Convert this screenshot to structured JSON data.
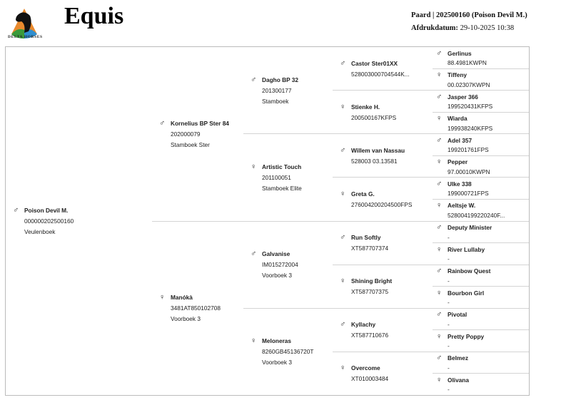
{
  "header": {
    "logo_text": "DELTA HORSES",
    "title": "Equis",
    "horse_line": "Paard | 202500160 (Poison Devil M.)",
    "print_label": "Afdrukdatum:",
    "print_date": "29-10-2025 10:38"
  },
  "icons": {
    "male": "male-symbol ♂",
    "female": "female-symbol ♀"
  },
  "pedigree": {
    "name": "Poison Devil M.",
    "sex": "male",
    "number": "000000202500160",
    "book": "Veulenboek",
    "parents": [
      {
        "name": "Kornelius BP Ster 84",
        "sex": "male",
        "number": "202000079",
        "book": "Stamboek Ster",
        "parents": [
          {
            "name": "Dagho BP 32",
            "sex": "male",
            "number": "201300177",
            "book": "Stamboek",
            "parents": [
              {
                "name": "Castor Ster01XX",
                "sex": "male",
                "number": "528003000704544K...",
                "parents": [
                  {
                    "name": "Gerlinus",
                    "sex": "male",
                    "number": "88.4981KWPN"
                  },
                  {
                    "name": "Tiffeny",
                    "sex": "female",
                    "number": "00.02307KWPN"
                  }
                ]
              },
              {
                "name": "Stienke H.",
                "sex": "female",
                "number": "200500167KFPS",
                "parents": [
                  {
                    "name": "Jasper 366",
                    "sex": "male",
                    "number": "199520431KFPS"
                  },
                  {
                    "name": "Wiarda",
                    "sex": "female",
                    "number": "199938240KFPS"
                  }
                ]
              }
            ]
          },
          {
            "name": "Artistic Touch",
            "sex": "female",
            "number": "201100051",
            "book": "Stamboek Elite",
            "parents": [
              {
                "name": "Willem van Nassau",
                "sex": "male",
                "number": "528003 03.13581",
                "parents": [
                  {
                    "name": "Adel 357",
                    "sex": "male",
                    "number": "199201761FPS"
                  },
                  {
                    "name": "Pepper",
                    "sex": "female",
                    "number": "97.00010KWPN"
                  }
                ]
              },
              {
                "name": "Greta G.",
                "sex": "female",
                "number": "276004200204500FPS",
                "parents": [
                  {
                    "name": "Ulke 338",
                    "sex": "male",
                    "number": "199000721FPS"
                  },
                  {
                    "name": "Aeltsje W.",
                    "sex": "female",
                    "number": "528004199220240F..."
                  }
                ]
              }
            ]
          }
        ]
      },
      {
        "name": "Manókà",
        "sex": "female",
        "number": "3481AT850102708",
        "book": "Voorboek 3",
        "parents": [
          {
            "name": "Galvanise",
            "sex": "male",
            "number": "IM015272004",
            "book": "Voorboek 3",
            "parents": [
              {
                "name": "Run Softly",
                "sex": "male",
                "number": "XT587707374",
                "parents": [
                  {
                    "name": "Deputy Minister",
                    "sex": "male",
                    "number": "-"
                  },
                  {
                    "name": "River Lullaby",
                    "sex": "female",
                    "number": "-"
                  }
                ]
              },
              {
                "name": "Shining Bright",
                "sex": "female",
                "number": "XT587707375",
                "parents": [
                  {
                    "name": "Rainbow Quest",
                    "sex": "male",
                    "number": "-"
                  },
                  {
                    "name": "Bourbon Girl",
                    "sex": "female",
                    "number": "-"
                  }
                ]
              }
            ]
          },
          {
            "name": "Meloneras",
            "sex": "female",
            "number": "8260GB45136720T",
            "book": "Voorboek 3",
            "parents": [
              {
                "name": "Kyllachy",
                "sex": "male",
                "number": "XT587710676",
                "parents": [
                  {
                    "name": "Pivotal",
                    "sex": "male",
                    "number": "-"
                  },
                  {
                    "name": "Pretty Poppy",
                    "sex": "female",
                    "number": "-"
                  }
                ]
              },
              {
                "name": "Overcome",
                "sex": "female",
                "number": "XT010003484",
                "parents": [
                  {
                    "name": "Belmez",
                    "sex": "male",
                    "number": "-"
                  },
                  {
                    "name": "Olivana",
                    "sex": "female",
                    "number": "-"
                  }
                ]
              }
            ]
          }
        ]
      }
    ]
  }
}
